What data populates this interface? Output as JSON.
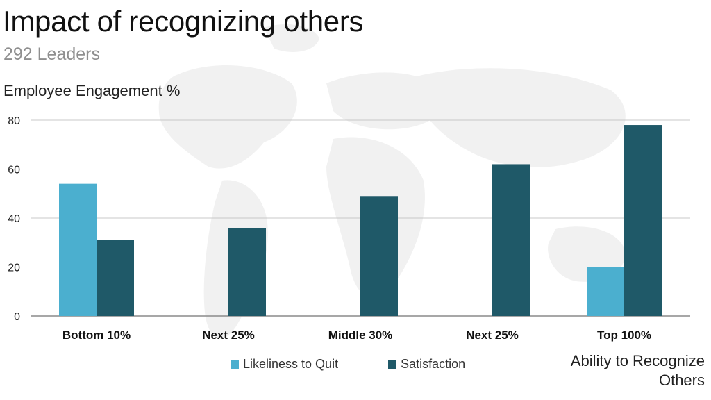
{
  "header": {
    "title": "Impact of recognizing others",
    "subtitle": "292 Leaders"
  },
  "chart_data": {
    "type": "bar",
    "ylabel": "Employee Engagement %",
    "xlabel": "Ability to Recognize Others",
    "categories": [
      "Bottom 10%",
      "Next 25%",
      "Middle 30%",
      "Next 25%",
      "Top 100%"
    ],
    "series": [
      {
        "name": "Likeliness to Quit",
        "values": [
          54,
          null,
          null,
          null,
          20
        ],
        "color": "#4bafcf"
      },
      {
        "name": "Satisfaction",
        "values": [
          31,
          36,
          49,
          62,
          78
        ],
        "color": "#1f5968"
      }
    ],
    "ylim": [
      0,
      80
    ],
    "yticks": [
      "0",
      "20",
      "40",
      "60",
      "80"
    ],
    "grid": true,
    "legend": "bottom-center"
  }
}
